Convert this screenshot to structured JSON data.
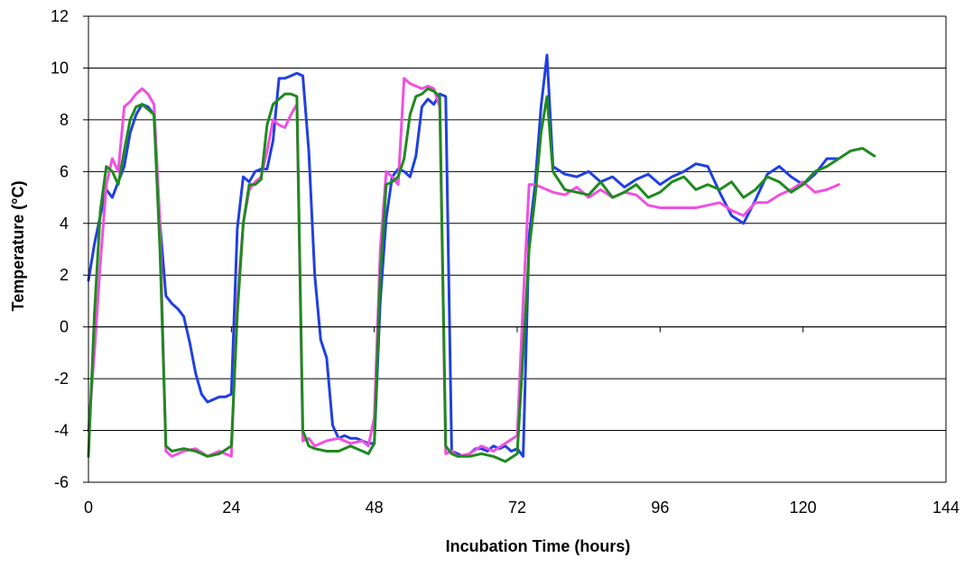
{
  "chart_data": {
    "type": "line",
    "title": "",
    "xlabel": "Incubation Time (hours)",
    "ylabel": "Temperature (°C)",
    "xlim": [
      0,
      144
    ],
    "ylim": [
      -6,
      12
    ],
    "xticks": [
      0,
      24,
      48,
      72,
      96,
      120,
      144
    ],
    "yticks": [
      -6,
      -4,
      -2,
      0,
      2,
      4,
      6,
      8,
      10,
      12
    ],
    "grid": "horizontal",
    "legend": "none",
    "series": [
      {
        "color": "#2040e0",
        "x": [
          0,
          1,
          2,
          3,
          4,
          5,
          6,
          7,
          8,
          9,
          10,
          11,
          12,
          13,
          14,
          15,
          16,
          17,
          18,
          19,
          20,
          21,
          22,
          23,
          24,
          25,
          26,
          27,
          28,
          29,
          30,
          31,
          32,
          33,
          34,
          35,
          36,
          37,
          38,
          39,
          40,
          41,
          42,
          43,
          44,
          45,
          46,
          47,
          48,
          49,
          50,
          51,
          52,
          53,
          54,
          55,
          56,
          57,
          58,
          59,
          60,
          61,
          62,
          63,
          64,
          65,
          66,
          67,
          68,
          69,
          70,
          71,
          72,
          73,
          74,
          75,
          76,
          77,
          78,
          80,
          82,
          84,
          86,
          88,
          90,
          92,
          94,
          96,
          98,
          100,
          102,
          104,
          106,
          108,
          110,
          112,
          114,
          116,
          118,
          120,
          122,
          124,
          126
        ],
        "y": [
          1.8,
          3.2,
          4.3,
          5.3,
          5.0,
          5.6,
          6.2,
          7.5,
          8.2,
          8.6,
          8.5,
          8.2,
          4.0,
          1.2,
          0.9,
          0.7,
          0.4,
          -0.6,
          -1.8,
          -2.6,
          -2.9,
          -2.8,
          -2.7,
          -2.7,
          -2.6,
          3.8,
          5.8,
          5.6,
          6.0,
          6.1,
          6.1,
          7.2,
          9.6,
          9.6,
          9.7,
          9.8,
          9.7,
          6.8,
          2.0,
          -0.5,
          -1.2,
          -3.8,
          -4.3,
          -4.2,
          -4.3,
          -4.3,
          -4.4,
          -4.5,
          -4.5,
          1.0,
          4.2,
          5.8,
          6.1,
          6.0,
          5.8,
          6.6,
          8.5,
          8.8,
          8.6,
          9.0,
          8.9,
          -4.8,
          -4.9,
          -5.0,
          -4.9,
          -4.7,
          -4.7,
          -4.8,
          -4.6,
          -4.7,
          -4.6,
          -4.8,
          -4.7,
          -5.0,
          3.5,
          5.5,
          8.5,
          10.5,
          6.2,
          5.9,
          5.8,
          6.0,
          5.6,
          5.8,
          5.4,
          5.7,
          5.9,
          5.5,
          5.8,
          6.0,
          6.3,
          6.2,
          5.2,
          4.3,
          4.0,
          4.9,
          5.9,
          6.2,
          5.8,
          5.5,
          5.9,
          6.5,
          6.5
        ]
      },
      {
        "color": "#f050e0",
        "x": [
          0,
          1,
          2,
          3,
          4,
          5,
          6,
          7,
          8,
          9,
          10,
          11,
          12,
          13,
          14,
          16,
          18,
          20,
          22,
          24,
          25,
          26,
          27,
          28,
          29,
          30,
          31,
          32,
          33,
          34,
          35,
          36,
          37,
          38,
          40,
          42,
          44,
          46,
          47,
          48,
          49,
          50,
          51,
          52,
          53,
          54,
          55,
          56,
          57,
          58,
          59,
          60,
          61,
          62,
          64,
          66,
          68,
          70,
          72,
          73,
          74,
          75,
          76,
          77,
          78,
          80,
          82,
          84,
          86,
          88,
          90,
          92,
          94,
          96,
          98,
          100,
          102,
          104,
          106,
          108,
          110,
          112,
          114,
          116,
          118,
          120,
          122,
          124,
          126
        ],
        "y": [
          -4.0,
          -1.0,
          2.5,
          5.5,
          6.5,
          6.0,
          8.5,
          8.7,
          9.0,
          9.2,
          9.0,
          8.6,
          4.0,
          -4.8,
          -5.0,
          -4.8,
          -4.7,
          -5.0,
          -4.8,
          -5.0,
          1.0,
          4.0,
          5.3,
          5.6,
          5.8,
          6.8,
          8.0,
          7.8,
          7.7,
          8.2,
          8.6,
          -4.4,
          -4.3,
          -4.6,
          -4.4,
          -4.3,
          -4.5,
          -4.4,
          -4.6,
          -3.5,
          3.0,
          6.0,
          5.8,
          5.5,
          9.6,
          9.4,
          9.3,
          9.2,
          9.3,
          9.2,
          8.5,
          -4.9,
          -4.8,
          -5.0,
          -4.9,
          -4.6,
          -4.8,
          -4.5,
          -4.2,
          1.0,
          5.5,
          5.5,
          5.4,
          5.3,
          5.2,
          5.1,
          5.4,
          5.0,
          5.3,
          5.0,
          5.2,
          5.1,
          4.7,
          4.6,
          4.6,
          4.6,
          4.6,
          4.7,
          4.8,
          4.5,
          4.3,
          4.8,
          4.8,
          5.1,
          5.3,
          5.6,
          5.2,
          5.3,
          5.5
        ]
      },
      {
        "color": "#1f8a1f",
        "x": [
          0,
          1,
          2,
          3,
          4,
          5,
          6,
          7,
          8,
          9,
          10,
          11,
          12,
          13,
          14,
          16,
          18,
          20,
          22,
          24,
          25,
          26,
          27,
          28,
          29,
          30,
          31,
          32,
          33,
          34,
          35,
          36,
          37,
          38,
          40,
          42,
          44,
          46,
          47,
          48,
          49,
          50,
          51,
          52,
          53,
          54,
          55,
          56,
          57,
          58,
          59,
          60,
          61,
          62,
          64,
          66,
          68,
          70,
          72,
          73,
          74,
          75,
          76,
          77,
          78,
          80,
          82,
          84,
          86,
          88,
          90,
          92,
          94,
          96,
          98,
          100,
          102,
          104,
          106,
          108,
          110,
          112,
          114,
          116,
          118,
          120,
          122,
          124,
          126,
          128,
          130,
          132
        ],
        "y": [
          -5.0,
          0.5,
          4.5,
          6.2,
          6.0,
          5.5,
          6.8,
          8.0,
          8.5,
          8.6,
          8.4,
          8.2,
          3.0,
          -4.6,
          -4.8,
          -4.7,
          -4.8,
          -5.0,
          -4.9,
          -4.6,
          0.5,
          4.0,
          5.5,
          5.5,
          5.7,
          7.8,
          8.6,
          8.8,
          9.0,
          9.0,
          8.9,
          -4.0,
          -4.6,
          -4.7,
          -4.8,
          -4.8,
          -4.6,
          -4.8,
          -4.9,
          -4.5,
          2.0,
          5.5,
          5.6,
          5.8,
          6.5,
          8.2,
          8.9,
          9.0,
          9.2,
          9.1,
          8.9,
          -4.6,
          -4.9,
          -5.0,
          -5.0,
          -4.9,
          -5.0,
          -5.2,
          -4.9,
          -1.0,
          3.0,
          5.0,
          7.5,
          8.9,
          6.0,
          5.3,
          5.2,
          5.1,
          5.6,
          5.0,
          5.2,
          5.5,
          5.0,
          5.2,
          5.6,
          5.8,
          5.3,
          5.5,
          5.3,
          5.6,
          5.0,
          5.3,
          5.8,
          5.6,
          5.2,
          5.5,
          6.0,
          6.2,
          6.5,
          6.8,
          6.9,
          6.6
        ]
      }
    ]
  }
}
